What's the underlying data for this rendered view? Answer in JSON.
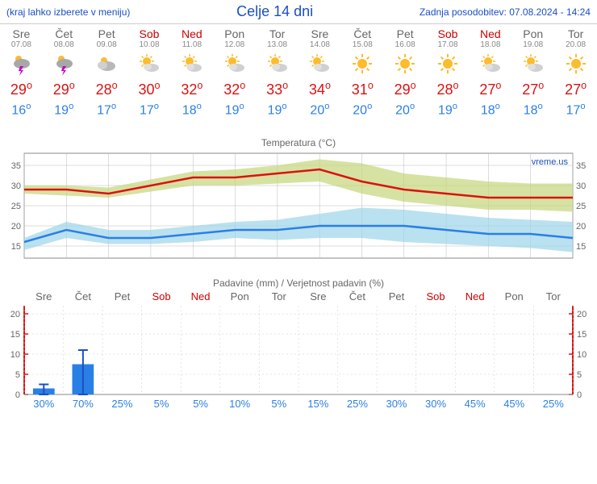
{
  "header": {
    "hint": "(kraj lahko izberete v meniju)",
    "title": "Celje 14 dni",
    "updated": "Zadnja posodobitev: 07.08.2024 - 14:24"
  },
  "days": [
    {
      "name": "Sre",
      "date": "07.08",
      "wk": false,
      "icon": "storm",
      "hi": 29,
      "lo": 16,
      "prob": 30,
      "precip": 1.5,
      "precip_err": 2.5
    },
    {
      "name": "Čet",
      "date": "08.08",
      "wk": false,
      "icon": "storm",
      "hi": 29,
      "lo": 19,
      "prob": 70,
      "precip": 7.5,
      "precip_err": 11
    },
    {
      "name": "Pet",
      "date": "09.08",
      "wk": false,
      "icon": "cloudy",
      "hi": 28,
      "lo": 17,
      "prob": 25,
      "precip": 0,
      "precip_err": 0
    },
    {
      "name": "Sob",
      "date": "10.08",
      "wk": true,
      "icon": "partly",
      "hi": 30,
      "lo": 17,
      "prob": 5,
      "precip": 0,
      "precip_err": 0
    },
    {
      "name": "Ned",
      "date": "11.08",
      "wk": true,
      "icon": "partly",
      "hi": 32,
      "lo": 18,
      "prob": 5,
      "precip": 0,
      "precip_err": 0
    },
    {
      "name": "Pon",
      "date": "12.08",
      "wk": false,
      "icon": "partly",
      "hi": 32,
      "lo": 19,
      "prob": 10,
      "precip": 0,
      "precip_err": 0
    },
    {
      "name": "Tor",
      "date": "13.08",
      "wk": false,
      "icon": "partly",
      "hi": 33,
      "lo": 19,
      "prob": 5,
      "precip": 0,
      "precip_err": 0
    },
    {
      "name": "Sre",
      "date": "14.08",
      "wk": false,
      "icon": "partly",
      "hi": 34,
      "lo": 20,
      "prob": 15,
      "precip": 0,
      "precip_err": 0
    },
    {
      "name": "Čet",
      "date": "15.08",
      "wk": false,
      "icon": "sunny",
      "hi": 31,
      "lo": 20,
      "prob": 25,
      "precip": 0,
      "precip_err": 0
    },
    {
      "name": "Pet",
      "date": "16.08",
      "wk": false,
      "icon": "sunny",
      "hi": 29,
      "lo": 20,
      "prob": 30,
      "precip": 0,
      "precip_err": 0
    },
    {
      "name": "Sob",
      "date": "17.08",
      "wk": true,
      "icon": "sunny",
      "hi": 28,
      "lo": 19,
      "prob": 30,
      "precip": 0,
      "precip_err": 0
    },
    {
      "name": "Ned",
      "date": "18.08",
      "wk": true,
      "icon": "partly",
      "hi": 27,
      "lo": 18,
      "prob": 45,
      "precip": 0,
      "precip_err": 0
    },
    {
      "name": "Pon",
      "date": "19.08",
      "wk": false,
      "icon": "partly",
      "hi": 27,
      "lo": 18,
      "prob": 45,
      "precip": 0,
      "precip_err": 0
    },
    {
      "name": "Tor",
      "date": "20.08",
      "wk": false,
      "icon": "sunny",
      "hi": 27,
      "lo": 17,
      "prob": 25,
      "precip": 0,
      "precip_err": 0
    }
  ],
  "temp_chart": {
    "title": "Temperatura (°C)",
    "watermark": "vreme.us",
    "ylim": [
      12,
      38
    ],
    "yticks": [
      15,
      20,
      25,
      30,
      35
    ],
    "hi_line_color": "#d11",
    "hi_band_color": "#c5d67a",
    "lo_line_color": "#2a7fe6",
    "lo_band_color": "#9dd4e8",
    "grid_color": "#bbb",
    "hi_band": [
      [
        28,
        30
      ],
      [
        27.5,
        30
      ],
      [
        27,
        29.5
      ],
      [
        28.5,
        31.5
      ],
      [
        30,
        33.5
      ],
      [
        30,
        34
      ],
      [
        30.5,
        35
      ],
      [
        31,
        36.5
      ],
      [
        28,
        35.5
      ],
      [
        26,
        33
      ],
      [
        25,
        32
      ],
      [
        24,
        31
      ],
      [
        24,
        30.5
      ],
      [
        23.5,
        30.5
      ]
    ],
    "lo_band": [
      [
        14,
        17
      ],
      [
        17,
        21
      ],
      [
        15.5,
        19
      ],
      [
        15.5,
        19
      ],
      [
        16,
        20
      ],
      [
        17,
        21
      ],
      [
        16.5,
        21.5
      ],
      [
        17,
        23
      ],
      [
        17,
        24.5
      ],
      [
        16,
        24
      ],
      [
        15.5,
        23
      ],
      [
        15,
        22
      ],
      [
        14.5,
        21.5
      ],
      [
        13.5,
        21
      ]
    ]
  },
  "precip_chart": {
    "title": "Padavine (mm) / Verjetnost padavin (%)",
    "ylim": [
      0,
      22
    ],
    "yticks": [
      0,
      5,
      10,
      15,
      20
    ],
    "bar_color": "#2a7fe6",
    "err_color": "#1a4fc0",
    "axis_color": "#d11",
    "grid_color": "#ccc"
  }
}
